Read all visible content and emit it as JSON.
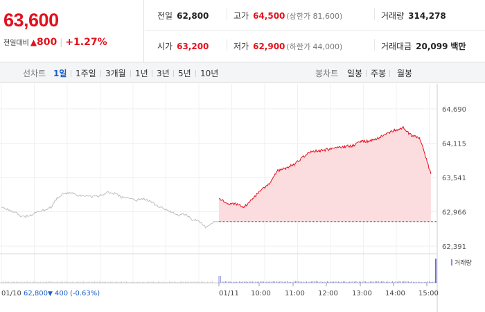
{
  "price": {
    "current": "63,600",
    "change_label": "전일대비",
    "change_arrow": "▲",
    "change_amount": "800",
    "change_percent": "+1.27%"
  },
  "stats": {
    "prev_close": {
      "label": "전일",
      "value": "62,800"
    },
    "high": {
      "label": "고가",
      "value": "64,500",
      "sub": "(상한가 81,600)"
    },
    "volume": {
      "label": "거래량",
      "value": "314,278"
    },
    "open": {
      "label": "시가",
      "value": "63,200"
    },
    "low": {
      "label": "저가",
      "value": "62,900",
      "sub": "(하한가 44,000)"
    },
    "turnover": {
      "label": "거래대금",
      "value": "20,099",
      "unit": "백만"
    }
  },
  "line_tabs": {
    "label": "선차트",
    "items": [
      "1일",
      "1주일",
      "3개월",
      "1년",
      "3년",
      "5년",
      "10년"
    ],
    "active": "1일"
  },
  "candle_tabs": {
    "label": "봉차트",
    "items": [
      "일봉",
      "주봉",
      "월봉"
    ]
  },
  "colors": {
    "up": "#e3111d",
    "down": "#1a5dc9",
    "prev_day_line": "#bdbdbd",
    "area_fill": "#fbdde0"
  },
  "chart_data": {
    "type": "line",
    "y_ticks": [
      "64,690",
      "64,115",
      "63,541",
      "62,966",
      "62,391"
    ],
    "ylim": [
      62391,
      64690
    ],
    "prev_close_line": 62800,
    "volume_legend": "거래량",
    "prev_day_info": {
      "date": "01/10",
      "close": "62,800",
      "arrow": "▼",
      "change": "400",
      "pct": "(-0.63%)"
    },
    "x_labels": [
      "01/11",
      "10:00",
      "11:00",
      "12:00",
      "13:00",
      "14:00",
      "15:00"
    ],
    "series": [
      {
        "session": "01/10",
        "x": [
          "10",
          "20",
          "30",
          "40",
          "50",
          "60",
          "70",
          "80",
          "90",
          "100",
          "110",
          "120",
          "130",
          "140",
          "150",
          "160",
          "170",
          "180",
          "190",
          "200",
          "210",
          "220",
          "230",
          "240",
          "250",
          "260",
          "270",
          "280",
          "290",
          "300",
          "310"
        ],
        "values": [
          63060,
          63000,
          62960,
          62880,
          62900,
          62960,
          63000,
          63040,
          63210,
          63280,
          63290,
          63240,
          63230,
          63220,
          63240,
          63290,
          63270,
          63210,
          63200,
          63160,
          63180,
          63150,
          63070,
          63020,
          62970,
          62910,
          62930,
          62840,
          62800,
          62700,
          62800
        ]
      },
      {
        "session": "01/11",
        "x": [
          "09:00",
          "09:15",
          "09:30",
          "09:45",
          "10:00",
          "10:15",
          "10:30",
          "10:45",
          "11:00",
          "11:15",
          "11:30",
          "11:45",
          "12:00",
          "12:15",
          "12:30",
          "12:45",
          "13:00",
          "13:15",
          "13:30",
          "13:45",
          "14:00",
          "14:15",
          "14:30",
          "14:45",
          "15:00",
          "15:20"
        ],
        "values": [
          63200,
          63100,
          63100,
          63040,
          63180,
          63320,
          63440,
          63650,
          63700,
          63760,
          63880,
          63980,
          63990,
          64010,
          64050,
          64060,
          64070,
          64140,
          64150,
          64200,
          64280,
          64330,
          64380,
          64240,
          64200,
          63600
        ]
      }
    ]
  }
}
